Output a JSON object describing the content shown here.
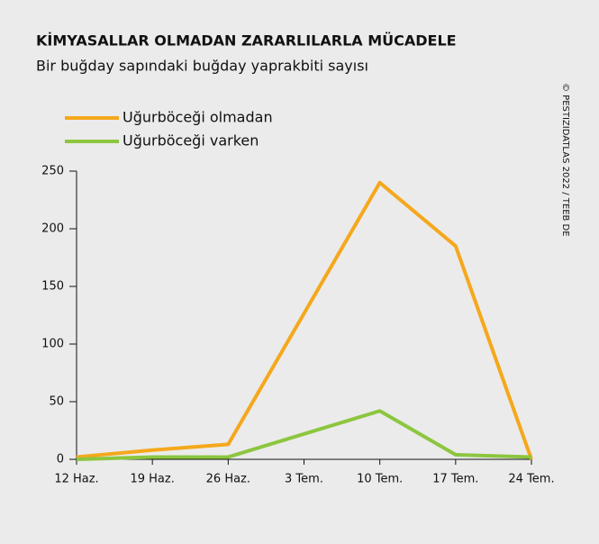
{
  "chart_data": {
    "type": "line",
    "title": "KİMYASALLAR OLMADAN ZARARLILARLA MÜCADELE",
    "subtitle": "Bir buğday sapındaki buğday yaprakbiti sayısı",
    "source": "© PESTIZIDATLAS 2022 / TEEB DE",
    "categories": [
      "12 Haz.",
      "19 Haz.",
      "26 Haz.",
      "3 Tem.",
      "10 Tem.",
      "17 Tem.",
      "24 Tem."
    ],
    "series": [
      {
        "name": "Uğurböceği olmadan",
        "color": "#f5a81c",
        "values": [
          2,
          8,
          13,
          null,
          240,
          185,
          0
        ]
      },
      {
        "name": "Uğurböceği varken",
        "color": "#8cc63f",
        "values": [
          0,
          2,
          2,
          22,
          42,
          4,
          2
        ]
      }
    ],
    "ylim": [
      0,
      250
    ],
    "yticks": [
      0,
      50,
      100,
      150,
      200,
      250
    ]
  }
}
